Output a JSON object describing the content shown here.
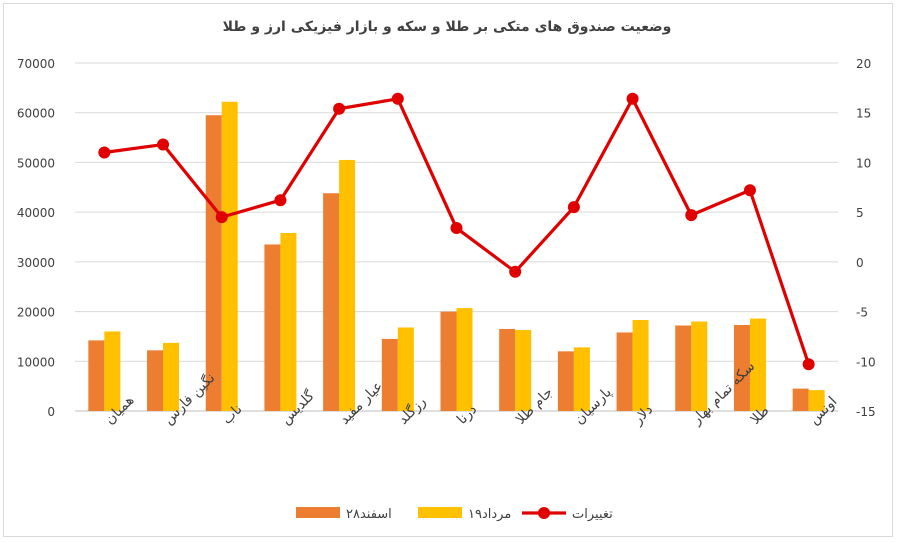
{
  "chart_data": {
    "type": "bar",
    "title": "وضعیت صندوق های متکی بر طلا و سکه و بازار فیزیکی ارز و طلا",
    "categories": [
      "همیان",
      "نگین فارس",
      "ناب",
      "گلدیس",
      "عیار مفید",
      "رزگلد",
      "درنا",
      "جام طلا",
      "پارسیان",
      "دلار",
      "سکه تمام بهار",
      "طلا",
      "اونس"
    ],
    "left_axis": {
      "ylim": [
        0,
        70000
      ],
      "ticks": [
        "0",
        "10000",
        "20000",
        "30000",
        "40000",
        "50000",
        "60000",
        "70000"
      ]
    },
    "right_axis": {
      "ylim": [
        -15,
        20
      ],
      "ticks": [
        "-15",
        "-10",
        "-5",
        "0",
        "5",
        "10",
        "15",
        "20"
      ]
    },
    "series": [
      {
        "name": "۲۸اسفند",
        "type": "bar",
        "axis": "left",
        "color": "#ED7D31",
        "values": [
          14200,
          12200,
          59500,
          33500,
          43800,
          14500,
          20000,
          16500,
          12000,
          15800,
          17200,
          17300,
          4500
        ]
      },
      {
        "name": "۱۹مرداد",
        "type": "bar",
        "axis": "left",
        "color": "#FFC000",
        "values": [
          16000,
          13700,
          62200,
          35800,
          50500,
          16800,
          20700,
          16300,
          12800,
          18300,
          18000,
          18600,
          4200
        ]
      },
      {
        "name": "تغییرات",
        "type": "line",
        "axis": "right",
        "color": "#E00000",
        "values": [
          11,
          11.8,
          4.5,
          6.2,
          15.4,
          16.4,
          3.4,
          -1,
          5.5,
          16.4,
          4.7,
          7.2,
          -10.3
        ]
      }
    ],
    "legend_position": "bottom",
    "grid": true
  }
}
